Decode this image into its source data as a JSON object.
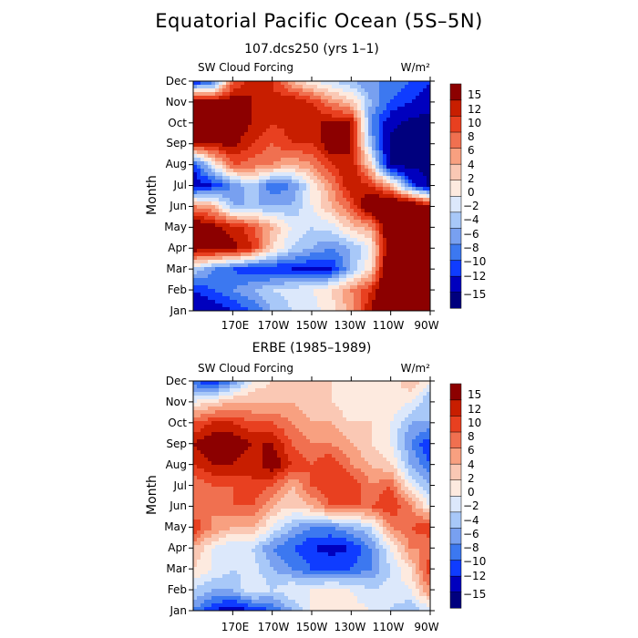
{
  "title": "Equatorial Pacific Ocean (5S–5N)",
  "colors": [
    "#00007e",
    "#0000be",
    "#0f3cff",
    "#3c78f0",
    "#78a0f0",
    "#a8c8f8",
    "#dce8fb",
    "#fdeadf",
    "#fac8b4",
    "#f8a080",
    "#f07050",
    "#e84020",
    "#c81e00",
    "#8c0000"
  ],
  "chart_data": [
    {
      "type": "heatmap",
      "subtitle": "107.dcs250 (yrs 1–1)",
      "variable_label": "SW Cloud Forcing",
      "units": "W/m²",
      "ylabel": "Month",
      "xlabel": "",
      "months": [
        "Jan",
        "Feb",
        "Mar",
        "Apr",
        "May",
        "Jun",
        "Jul",
        "Aug",
        "Sep",
        "Oct",
        "Nov",
        "Dec"
      ],
      "x_ticks": [
        "170E",
        "170W",
        "150W",
        "130W",
        "110W",
        "90W"
      ],
      "x_tick_lon": [
        170,
        190,
        210,
        230,
        250,
        270
      ],
      "x_range_lon": [
        150,
        270
      ],
      "levels": [
        -15,
        -12,
        -10,
        -8,
        -6,
        -4,
        -2,
        0,
        2,
        4,
        6,
        8,
        10,
        12,
        15
      ],
      "colorbar_labels": [
        "15",
        "12",
        "10",
        "8",
        "6",
        "4",
        "2",
        "0",
        "−2",
        "−4",
        "−6",
        "−8",
        "−10",
        "−12",
        "−15"
      ],
      "lons": [
        150,
        160,
        170,
        180,
        190,
        200,
        210,
        220,
        230,
        240,
        250,
        260,
        270
      ],
      "values": [
        [
          -15,
          -14,
          -12,
          -10,
          -6,
          -4,
          -3,
          -1,
          3,
          10,
          15,
          16,
          16
        ],
        [
          -12,
          -10,
          -8,
          -6,
          -4,
          -3,
          -2,
          0,
          4,
          8,
          16,
          16,
          16
        ],
        [
          -4,
          -8,
          -10,
          -12,
          -12,
          -12,
          -13,
          -12,
          -6,
          0,
          16,
          16,
          16
        ],
        [
          12,
          12,
          11,
          8,
          0,
          -4,
          -6,
          -8,
          -6,
          -2,
          14,
          16,
          16
        ],
        [
          14,
          11,
          9,
          7,
          2,
          -2,
          -4,
          -3,
          1,
          3,
          15,
          16,
          16
        ],
        [
          4,
          2,
          -6,
          -6,
          -6,
          -6,
          -2,
          2,
          6,
          14,
          16,
          16,
          10
        ],
        [
          -14,
          -12,
          -8,
          -4,
          -10,
          -8,
          -2,
          4,
          10,
          8,
          2,
          -10,
          -16
        ],
        [
          -12,
          -2,
          6,
          5,
          4,
          2,
          4,
          8,
          10,
          0,
          -16,
          -16,
          -16
        ],
        [
          10,
          10,
          11,
          8,
          6,
          8,
          8,
          12,
          10,
          -6,
          -16,
          -16,
          -16
        ],
        [
          15,
          14,
          12,
          10,
          8,
          9,
          10,
          10,
          10,
          -8,
          -14,
          -16,
          -16
        ],
        [
          14,
          12,
          12,
          10,
          9,
          10,
          8,
          4,
          1,
          -6,
          -10,
          -12,
          -14
        ],
        [
          -14,
          -10,
          5,
          10,
          8,
          2,
          -2,
          -4,
          -6,
          -8,
          -8,
          -10,
          -12
        ]
      ]
    },
    {
      "type": "heatmap",
      "subtitle": "ERBE (1985–1989)",
      "variable_label": "SW Cloud Forcing",
      "units": "W/m²",
      "ylabel": "Month",
      "xlabel": "",
      "months": [
        "Jan",
        "Feb",
        "Mar",
        "Apr",
        "May",
        "Jun",
        "Jul",
        "Aug",
        "Sep",
        "Oct",
        "Nov",
        "Dec"
      ],
      "x_ticks": [
        "170E",
        "170W",
        "150W",
        "130W",
        "110W",
        "90W"
      ],
      "x_tick_lon": [
        170,
        190,
        210,
        230,
        250,
        270
      ],
      "x_range_lon": [
        150,
        270
      ],
      "levels": [
        -15,
        -12,
        -10,
        -8,
        -6,
        -4,
        -2,
        0,
        2,
        4,
        6,
        8,
        10,
        12,
        15
      ],
      "colorbar_labels": [
        "15",
        "12",
        "10",
        "8",
        "6",
        "4",
        "2",
        "0",
        "−2",
        "−4",
        "−6",
        "−8",
        "−10",
        "−12",
        "−15"
      ],
      "lons": [
        150,
        160,
        170,
        180,
        190,
        200,
        210,
        220,
        230,
        240,
        250,
        260,
        270
      ],
      "values": [
        [
          -8,
          -12,
          -14,
          -12,
          -10,
          -6,
          -2,
          -2,
          -1,
          -2,
          -4,
          -6,
          -3
        ],
        [
          -4,
          -6,
          -6,
          -2,
          -4,
          -2,
          -2,
          -1,
          -2,
          -4,
          -3,
          -2,
          4
        ],
        [
          0,
          -2,
          -4,
          -3,
          -6,
          -8,
          -10,
          -10,
          -10,
          -8,
          -4,
          0,
          8
        ],
        [
          2,
          -2,
          -4,
          -4,
          -8,
          -10,
          -12,
          -13,
          -12,
          -8,
          -2,
          4,
          4
        ],
        [
          8,
          4,
          2,
          2,
          -2,
          -6,
          -8,
          -8,
          -6,
          -4,
          4,
          6,
          8
        ],
        [
          4,
          4,
          6,
          6,
          2,
          0,
          2,
          6,
          6,
          6,
          8,
          4,
          -2
        ],
        [
          4,
          6,
          6,
          8,
          6,
          2,
          6,
          8,
          8,
          4,
          6,
          -2,
          -6
        ],
        [
          8,
          10,
          10,
          8,
          12,
          8,
          6,
          8,
          4,
          2,
          0,
          -6,
          -10
        ],
        [
          10,
          12,
          12,
          10,
          10,
          6,
          4,
          4,
          2,
          0,
          -2,
          -8,
          -12
        ],
        [
          6,
          8,
          8,
          6,
          6,
          4,
          2,
          2,
          0,
          0,
          -2,
          -6,
          -6
        ],
        [
          -2,
          0,
          2,
          2,
          2,
          2,
          0,
          0,
          -2,
          -2,
          0,
          -2,
          -6
        ],
        [
          -10,
          -12,
          -8,
          -2,
          0,
          2,
          2,
          0,
          -2,
          -2,
          -2,
          2,
          -2
        ]
      ]
    }
  ]
}
